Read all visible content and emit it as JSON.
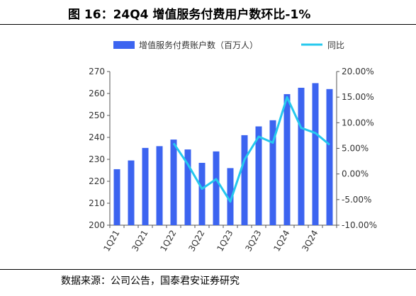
{
  "title": "图 16：24Q4 增值服务付费用户数环比-1%",
  "source": "数据来源：公司公告，国泰君安证券研究",
  "colors": {
    "bar": "#3C64F0",
    "line": "#25C8EE"
  },
  "chart_data": {
    "type": "bar",
    "categories": [
      "1Q21",
      "2Q21",
      "3Q21",
      "4Q21",
      "1Q22",
      "2Q22",
      "3Q22",
      "4Q22",
      "1Q23",
      "2Q23",
      "3Q23",
      "4Q23",
      "1Q24",
      "2Q24",
      "3Q24",
      "4Q24"
    ],
    "x_tick_labels": [
      "1Q21",
      "3Q21",
      "1Q22",
      "3Q22",
      "1Q23",
      "3Q23",
      "1Q24",
      "3Q24"
    ],
    "series": [
      {
        "name": "增值服务付费账户数（百万人）",
        "type": "bar",
        "axis": "left",
        "values": [
          225.5,
          229.5,
          235.2,
          236.0,
          239.0,
          234.5,
          228.4,
          233.6,
          226.0,
          241.0,
          245.0,
          247.8,
          259.7,
          262.6,
          264.7,
          262.0
        ]
      },
      {
        "name": "同比",
        "type": "line",
        "axis": "right",
        "values": [
          null,
          null,
          null,
          null,
          6.0,
          1.9,
          -2.9,
          -1.0,
          -5.4,
          2.8,
          7.3,
          6.1,
          15.0,
          9.0,
          8.0,
          5.7
        ]
      }
    ],
    "y_left": {
      "min": 200,
      "max": 270,
      "ticks": [
        "200",
        "210",
        "220",
        "230",
        "240",
        "250",
        "260",
        "270"
      ]
    },
    "y_right": {
      "min": -10,
      "max": 20,
      "ticks": [
        "-10.00%",
        "-5.00%",
        "0.00%",
        "5.00%",
        "10.00%",
        "15.00%",
        "20.00%"
      ]
    },
    "legend_position": "top",
    "grid": false
  }
}
